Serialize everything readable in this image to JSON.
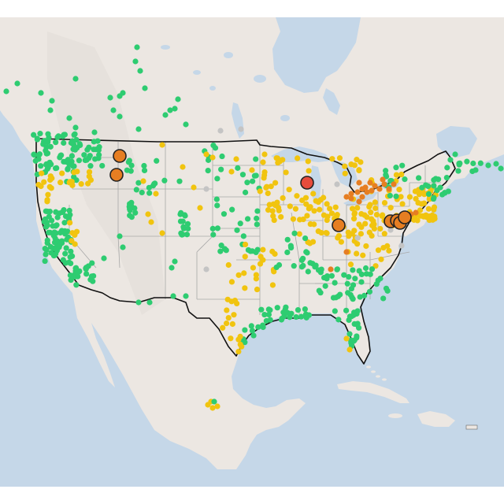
{
  "map": {
    "colors": {
      "ocean": "#c5d7e8",
      "land": "#ece7e2",
      "land_dark": "#e2ddd7",
      "lake": "#c5d7e8",
      "good": "#2ecc71",
      "moderate": "#f1c40f",
      "usg": "#e67e22",
      "unhealthy": "#e74c3c",
      "nodata": "#c4c4c4"
    },
    "aqi_levels": [
      "good",
      "moderate",
      "unhealthy-for-sensitive-groups",
      "unhealthy",
      "no-data"
    ]
  }
}
